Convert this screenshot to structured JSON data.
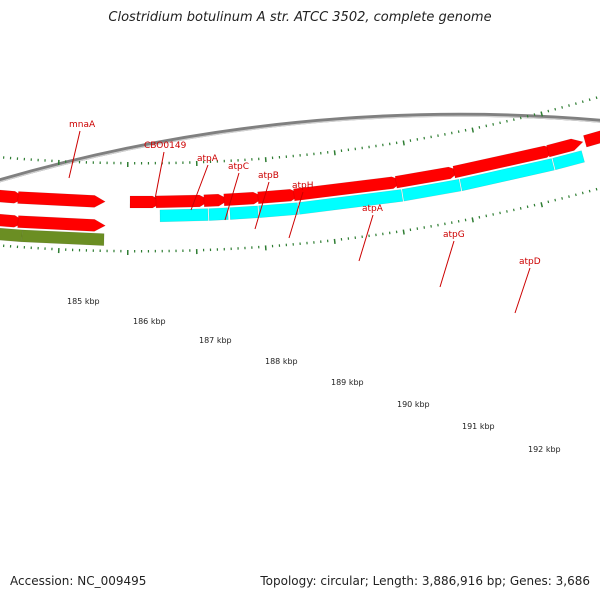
{
  "title": "Clostridium botulinum A str. ATCC 3502, complete genome",
  "footer": {
    "accession": "Accession: NC_009495",
    "stats": "Topology: circular; Length: 3,886,916 bp; Genes: 3,686"
  },
  "colors": {
    "cds_forward": "#00ffff",
    "cds_reverse": "#ff0000",
    "other_feature": "#6b8e23",
    "backbone": "#808080",
    "ticks": "#2e7d32",
    "label": "#cc0000",
    "scale_text": "#222222"
  },
  "scale_labels": [
    "185 kbp",
    "186 kbp",
    "187 kbp",
    "188 kbp",
    "189 kbp",
    "190 kbp",
    "191 kbp",
    "192 kbp"
  ],
  "gene_labels": [
    "mnaA",
    "CBO0149",
    "atpA",
    "atpC",
    "atpB",
    "atpH",
    "atpA",
    "atpG",
    "atpD"
  ]
}
